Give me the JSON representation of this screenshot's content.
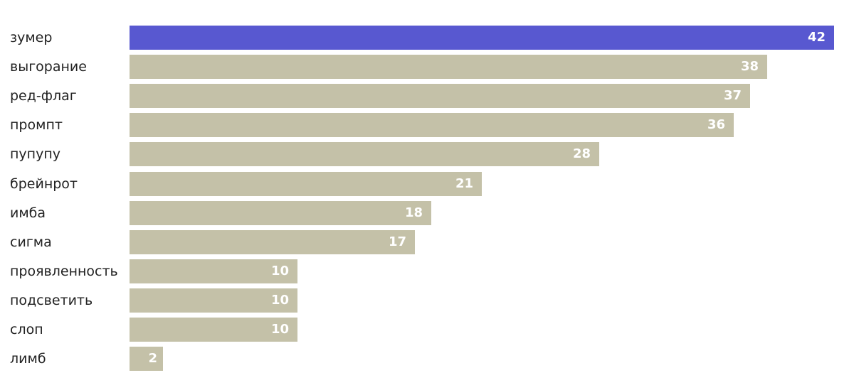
{
  "chart_data": {
    "type": "bar",
    "orientation": "horizontal",
    "categories": [
      "зумер",
      "выгорание",
      "ред-флаг",
      "промпт",
      "пупупу",
      "брейнрот",
      "имба",
      "сигма",
      "проявленность",
      "подсветить",
      "слоп",
      "лимб"
    ],
    "values": [
      42,
      38,
      37,
      36,
      28,
      21,
      18,
      17,
      10,
      10,
      10,
      2
    ],
    "value_labels": [
      "42",
      "38",
      "37",
      "36",
      "28",
      "21",
      "18",
      "17",
      "10",
      "10",
      "10",
      "2"
    ],
    "xlim": [
      0,
      42
    ],
    "grid": false,
    "highlight_index": 0,
    "colors": {
      "highlight": "#5858d0",
      "bar": "#c4c1a8",
      "value_text": "#ffffff",
      "label_text": "#222222"
    }
  }
}
